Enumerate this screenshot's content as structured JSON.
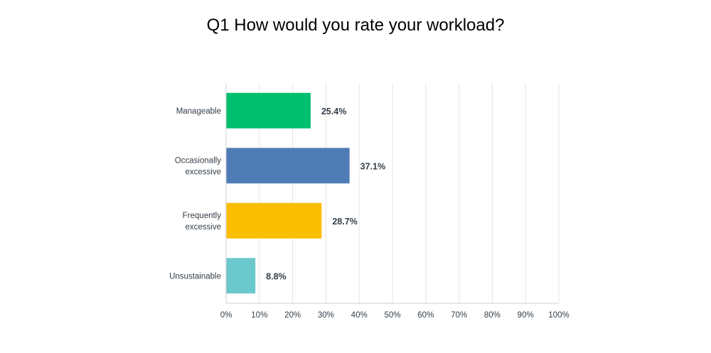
{
  "chart_data": {
    "type": "bar",
    "orientation": "horizontal",
    "title": "Q1 How would you rate your workload?",
    "categories": [
      [
        "Manageable"
      ],
      [
        "Occasionally",
        "excessive"
      ],
      [
        "Frequently",
        "excessive"
      ],
      [
        "Unsustainable"
      ]
    ],
    "values": [
      25.4,
      37.1,
      28.7,
      8.8
    ],
    "data_labels": [
      "25.4%",
      "37.1%",
      "28.7%",
      "8.8%"
    ],
    "colors": [
      "#00bf6f",
      "#507cb6",
      "#f9be00",
      "#6bc8cd"
    ],
    "xlim": [
      0,
      100
    ],
    "x_ticks": [
      "0%",
      "10%",
      "20%",
      "30%",
      "40%",
      "50%",
      "60%",
      "70%",
      "80%",
      "90%",
      "100%"
    ],
    "grid": true,
    "legend": "none"
  }
}
